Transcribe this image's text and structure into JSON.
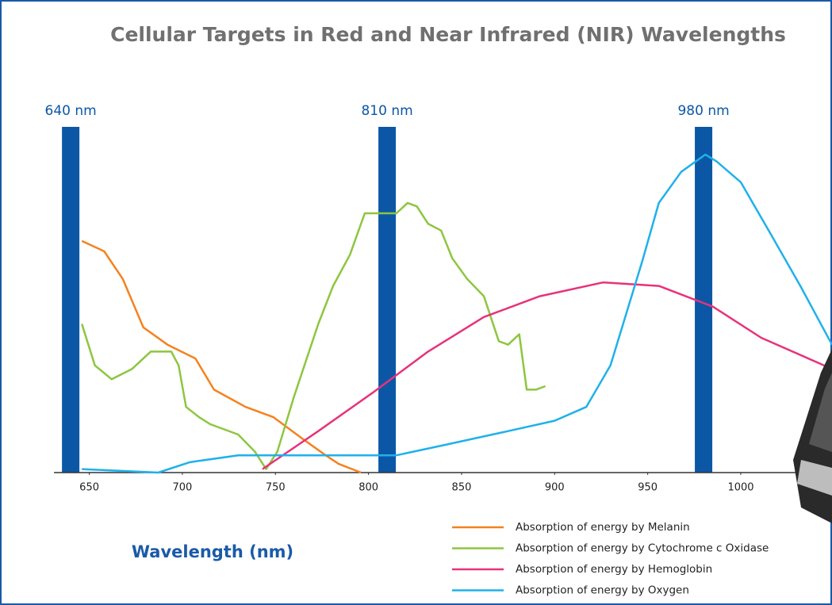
{
  "chart_data": {
    "type": "line",
    "title": "Cellular Targets in Red and Near Infrared (NIR) Wavelengths",
    "xlabel": "Wavelength (nm)",
    "xlim": [
      631,
      1049
    ],
    "xticks": [
      650,
      700,
      750,
      800,
      850,
      900,
      950,
      1000
    ],
    "ylim": [
      0,
      100
    ],
    "grid": false,
    "legend": "bottom-right",
    "bands": {
      "color": "#0b57a6",
      "positions": [
        {
          "value": 640,
          "label": "640 nm"
        },
        {
          "value": 810,
          "label": "810 nm"
        },
        {
          "value": 980,
          "label": "980 nm"
        }
      ]
    },
    "series": [
      {
        "name": "Absorption of energy by Melanin",
        "color": "#f58220",
        "x": [
          646,
          658,
          668,
          679,
          692,
          707,
          717,
          734,
          749,
          764,
          777,
          784,
          796
        ],
        "values": [
          67,
          64,
          56,
          42,
          37,
          33,
          24,
          19,
          16,
          10,
          5,
          2.5,
          0
        ]
      },
      {
        "name": "Absorption of energy by Cytochrome c Oxidase",
        "color": "#8dc63f",
        "x": [
          646,
          653,
          662,
          673,
          683,
          694,
          698,
          702,
          709,
          715,
          730,
          739,
          745,
          751,
          760,
          773,
          781,
          790,
          798,
          807,
          815,
          821,
          826,
          832,
          839,
          845,
          853,
          862,
          870,
          875,
          881,
          885,
          890,
          895
        ],
        "values": [
          43,
          31,
          27,
          30,
          35,
          35,
          31,
          19,
          16,
          14,
          11,
          6,
          1,
          6,
          22,
          43,
          54,
          63,
          75,
          75,
          75,
          78,
          77,
          72,
          70,
          62,
          56,
          51,
          38,
          37,
          40,
          24,
          24,
          25
        ]
      },
      {
        "name": "Absorption of energy by Hemoglobin",
        "color": "#e8327a",
        "x": [
          743,
          773,
          802,
          832,
          862,
          892,
          926,
          956,
          985,
          1011,
          1049
        ],
        "values": [
          1,
          12,
          23,
          35,
          45,
          51,
          55,
          54,
          48,
          39,
          30
        ]
      },
      {
        "name": "Absorption of energy by Oxygen",
        "color": "#1fb1ea",
        "x": [
          646,
          687,
          704,
          730,
          764,
          802,
          815,
          841,
          875,
          900,
          917,
          930,
          947,
          956,
          968,
          981,
          987,
          1000,
          1015,
          1032,
          1049
        ],
        "values": [
          1,
          0,
          3,
          5,
          5,
          5,
          5,
          8,
          12,
          15,
          19,
          31,
          61,
          78,
          87,
          92,
          90,
          84,
          70,
          54,
          37
        ]
      }
    ]
  }
}
